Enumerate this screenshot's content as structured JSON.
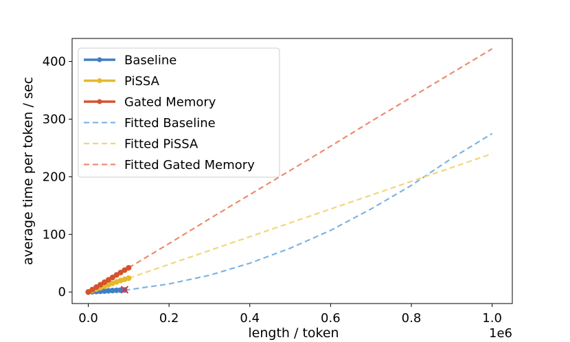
{
  "chart_data": {
    "type": "line",
    "title": "",
    "xlabel": "length / token",
    "ylabel": "average time per token / sec",
    "x_offset_label": "1e6",
    "xlim": [
      -0.04,
      1.05
    ],
    "ylim": [
      -20,
      440
    ],
    "x_ticks": [
      0.0,
      0.2,
      0.4,
      0.6,
      0.8,
      1.0
    ],
    "x_tick_labels": [
      "0.0",
      "0.2",
      "0.4",
      "0.6",
      "0.8",
      "1.0"
    ],
    "y_ticks": [
      0,
      100,
      200,
      300,
      400
    ],
    "y_tick_labels": [
      "0",
      "100",
      "200",
      "300",
      "400"
    ],
    "grid": false,
    "legend_position": "upper-left",
    "series": [
      {
        "name": "Baseline",
        "kind": "measured",
        "color": "#3f7fc4",
        "x": [
          0.0,
          0.01,
          0.02,
          0.03,
          0.04,
          0.05,
          0.06,
          0.07,
          0.08,
          0.09
        ],
        "y": [
          0.0,
          0.5,
          0.9,
          1.3,
          1.7,
          2.1,
          2.5,
          2.9,
          3.3,
          3.6
        ]
      },
      {
        "name": "PiSSA",
        "kind": "measured",
        "color": "#e5b92c",
        "x": [
          0.0,
          0.01,
          0.02,
          0.03,
          0.04,
          0.05,
          0.06,
          0.07,
          0.08,
          0.09,
          0.1
        ],
        "y": [
          0.0,
          2.5,
          5.0,
          7.5,
          10.0,
          12.5,
          15.0,
          17.5,
          20.0,
          22.0,
          24.0
        ]
      },
      {
        "name": "Gated Memory",
        "kind": "measured",
        "color": "#d4532d",
        "x": [
          0.0,
          0.01,
          0.02,
          0.03,
          0.04,
          0.05,
          0.06,
          0.07,
          0.08,
          0.09,
          0.1
        ],
        "y": [
          0.0,
          4.2,
          8.5,
          12.7,
          16.9,
          21.1,
          25.3,
          29.6,
          33.8,
          38.0,
          42.0
        ]
      },
      {
        "name": "Fitted Baseline",
        "kind": "fitted",
        "color": "#7cb3e5",
        "x": [
          0.09,
          0.1,
          0.2,
          0.3,
          0.4,
          0.5,
          0.6,
          0.7,
          0.8,
          0.9,
          1.0
        ],
        "y": [
          3.6,
          4.0,
          14.0,
          29.0,
          50.0,
          76.0,
          107.0,
          144.0,
          185.0,
          232.0,
          275.0
        ]
      },
      {
        "name": "Fitted PiSSA",
        "kind": "fitted",
        "color": "#f2d57b",
        "x": [
          0.1,
          0.2,
          0.3,
          0.4,
          0.5,
          0.6,
          0.7,
          0.8,
          0.9,
          1.0
        ],
        "y": [
          24.0,
          48.0,
          72.0,
          96.0,
          120.0,
          144.0,
          168.0,
          192.0,
          216.0,
          240.0
        ]
      },
      {
        "name": "Fitted Gated Memory",
        "kind": "fitted",
        "color": "#ec8a6e",
        "x": [
          0.1,
          0.2,
          0.3,
          0.4,
          0.5,
          0.6,
          0.7,
          0.8,
          0.9,
          1.0
        ],
        "y": [
          42.0,
          84.0,
          127.0,
          169.0,
          211.0,
          253.0,
          296.0,
          338.0,
          380.0,
          422.0
        ]
      }
    ],
    "markers": [
      {
        "name": "oom-x-marker",
        "x": 0.09,
        "y": 4.0,
        "color": "#e0353b",
        "symbol": "x"
      }
    ]
  }
}
